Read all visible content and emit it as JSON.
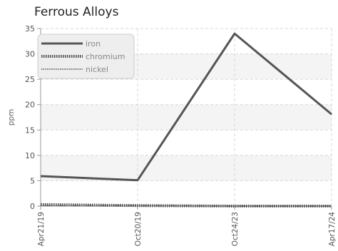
{
  "chart_data": {
    "type": "line",
    "title": "Ferrous Alloys",
    "xlabel": "",
    "ylabel": "ppm",
    "categories": [
      "Apr21/19",
      "Oct20/19",
      "Oct24/23",
      "Apr17/24"
    ],
    "ylim": [
      0,
      35
    ],
    "yticks": [
      0,
      5,
      10,
      15,
      20,
      25,
      30,
      35
    ],
    "grid": true,
    "legend_position": "top-left",
    "series": [
      {
        "name": "iron",
        "values": [
          5.9,
          5.1,
          34.0,
          18.1
        ],
        "color": "#555555",
        "style": "solid"
      },
      {
        "name": "chromium",
        "values": [
          0.3,
          0.1,
          0.0,
          0.0
        ],
        "color": "#555555",
        "style": "dotted-thick"
      },
      {
        "name": "nickel",
        "values": [
          0.1,
          0.1,
          0.0,
          0.0
        ],
        "color": "#777777",
        "style": "dotted-thin"
      }
    ]
  }
}
